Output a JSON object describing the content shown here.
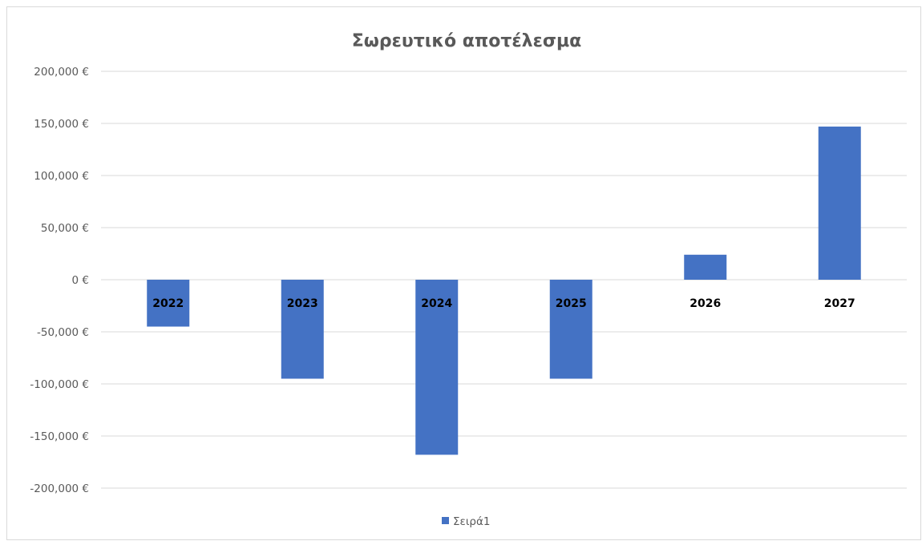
{
  "chart_data": {
    "type": "bar",
    "title": "Σωρευτικό αποτέλεσμα",
    "categories": [
      "2022",
      "2023",
      "2024",
      "2025",
      "2026",
      "2027"
    ],
    "series": [
      {
        "name": "Σειρά1",
        "values": [
          -45000,
          -95000,
          -168000,
          -95000,
          24000,
          147000
        ]
      }
    ],
    "ylim": [
      -200000,
      200000
    ],
    "y_ticks": [
      200000,
      150000,
      100000,
      50000,
      0,
      -50000,
      -100000,
      -150000,
      -200000
    ],
    "y_tick_labels": [
      "200,000 €",
      "150,000 €",
      "100,000 €",
      "50,000 €",
      "0 €",
      "-50,000 €",
      "-100,000 €",
      "-150,000 €",
      "-200,000 €"
    ],
    "grid": true,
    "legend_position": "bottom",
    "colors": {
      "bar": "#4472c4",
      "grid": "#d9d9d9",
      "axis_text": "#595959",
      "category_text": "#000000"
    }
  }
}
